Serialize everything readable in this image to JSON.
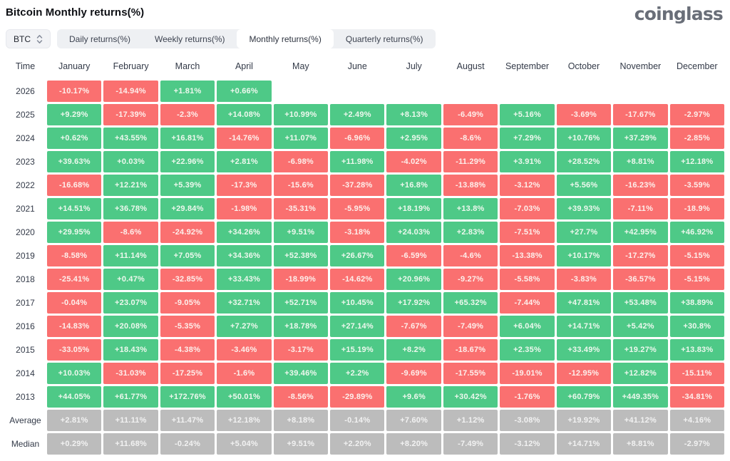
{
  "header": {
    "title": "Bitcoin Monthly returns(%)",
    "logo": "coinglass"
  },
  "controls": {
    "symbol": "BTC",
    "tabs": [
      {
        "label": "Daily returns(%)",
        "active": false
      },
      {
        "label": "Weekly returns(%)",
        "active": false
      },
      {
        "label": "Monthly returns(%)",
        "active": true
      },
      {
        "label": "Quarterly returns(%)",
        "active": false
      }
    ]
  },
  "colors": {
    "positive": "#4ec987",
    "negative": "#fa7070",
    "neutral": "#bcbcbc"
  },
  "chart_data": {
    "type": "heatmap",
    "title": "Bitcoin Monthly returns(%)",
    "columns": [
      "Time",
      "January",
      "February",
      "March",
      "April",
      "May",
      "June",
      "July",
      "August",
      "September",
      "October",
      "November",
      "December"
    ],
    "rows": [
      {
        "label": "2026",
        "neutral": false,
        "values": [
          "-10.17%",
          "-14.94%",
          "+1.81%",
          "+0.66%",
          "",
          "",
          "",
          "",
          "",
          "",
          "",
          ""
        ]
      },
      {
        "label": "2025",
        "neutral": false,
        "values": [
          "+9.29%",
          "-17.39%",
          "-2.3%",
          "+14.08%",
          "+10.99%",
          "+2.49%",
          "+8.13%",
          "-6.49%",
          "+5.16%",
          "-3.69%",
          "-17.67%",
          "-2.97%"
        ]
      },
      {
        "label": "2024",
        "neutral": false,
        "values": [
          "+0.62%",
          "+43.55%",
          "+16.81%",
          "-14.76%",
          "+11.07%",
          "-6.96%",
          "+2.95%",
          "-8.6%",
          "+7.29%",
          "+10.76%",
          "+37.29%",
          "-2.85%"
        ]
      },
      {
        "label": "2023",
        "neutral": false,
        "values": [
          "+39.63%",
          "+0.03%",
          "+22.96%",
          "+2.81%",
          "-6.98%",
          "+11.98%",
          "-4.02%",
          "-11.29%",
          "+3.91%",
          "+28.52%",
          "+8.81%",
          "+12.18%"
        ]
      },
      {
        "label": "2022",
        "neutral": false,
        "values": [
          "-16.68%",
          "+12.21%",
          "+5.39%",
          "-17.3%",
          "-15.6%",
          "-37.28%",
          "+16.8%",
          "-13.88%",
          "-3.12%",
          "+5.56%",
          "-16.23%",
          "-3.59%"
        ]
      },
      {
        "label": "2021",
        "neutral": false,
        "values": [
          "+14.51%",
          "+36.78%",
          "+29.84%",
          "-1.98%",
          "-35.31%",
          "-5.95%",
          "+18.19%",
          "+13.8%",
          "-7.03%",
          "+39.93%",
          "-7.11%",
          "-18.9%"
        ]
      },
      {
        "label": "2020",
        "neutral": false,
        "values": [
          "+29.95%",
          "-8.6%",
          "-24.92%",
          "+34.26%",
          "+9.51%",
          "-3.18%",
          "+24.03%",
          "+2.83%",
          "-7.51%",
          "+27.7%",
          "+42.95%",
          "+46.92%"
        ]
      },
      {
        "label": "2019",
        "neutral": false,
        "values": [
          "-8.58%",
          "+11.14%",
          "+7.05%",
          "+34.36%",
          "+52.38%",
          "+26.67%",
          "-6.59%",
          "-4.6%",
          "-13.38%",
          "+10.17%",
          "-17.27%",
          "-5.15%"
        ]
      },
      {
        "label": "2018",
        "neutral": false,
        "values": [
          "-25.41%",
          "+0.47%",
          "-32.85%",
          "+33.43%",
          "-18.99%",
          "-14.62%",
          "+20.96%",
          "-9.27%",
          "-5.58%",
          "-3.83%",
          "-36.57%",
          "-5.15%"
        ]
      },
      {
        "label": "2017",
        "neutral": false,
        "values": [
          "-0.04%",
          "+23.07%",
          "-9.05%",
          "+32.71%",
          "+52.71%",
          "+10.45%",
          "+17.92%",
          "+65.32%",
          "-7.44%",
          "+47.81%",
          "+53.48%",
          "+38.89%"
        ]
      },
      {
        "label": "2016",
        "neutral": false,
        "values": [
          "-14.83%",
          "+20.08%",
          "-5.35%",
          "+7.27%",
          "+18.78%",
          "+27.14%",
          "-7.67%",
          "-7.49%",
          "+6.04%",
          "+14.71%",
          "+5.42%",
          "+30.8%"
        ]
      },
      {
        "label": "2015",
        "neutral": false,
        "values": [
          "-33.05%",
          "+18.43%",
          "-4.38%",
          "-3.46%",
          "-3.17%",
          "+15.19%",
          "+8.2%",
          "-18.67%",
          "+2.35%",
          "+33.49%",
          "+19.27%",
          "+13.83%"
        ]
      },
      {
        "label": "2014",
        "neutral": false,
        "values": [
          "+10.03%",
          "-31.03%",
          "-17.25%",
          "-1.6%",
          "+39.46%",
          "+2.2%",
          "-9.69%",
          "-17.55%",
          "-19.01%",
          "-12.95%",
          "+12.82%",
          "-15.11%"
        ]
      },
      {
        "label": "2013",
        "neutral": false,
        "values": [
          "+44.05%",
          "+61.77%",
          "+172.76%",
          "+50.01%",
          "-8.56%",
          "-29.89%",
          "+9.6%",
          "+30.42%",
          "-1.76%",
          "+60.79%",
          "+449.35%",
          "-34.81%"
        ]
      },
      {
        "label": "Average",
        "neutral": true,
        "values": [
          "+2.81%",
          "+11.11%",
          "+11.47%",
          "+12.18%",
          "+8.18%",
          "-0.14%",
          "+7.60%",
          "+1.12%",
          "-3.08%",
          "+19.92%",
          "+41.12%",
          "+4.16%"
        ]
      },
      {
        "label": "Median",
        "neutral": true,
        "values": [
          "+0.29%",
          "+11.68%",
          "-0.24%",
          "+5.04%",
          "+9.51%",
          "+2.20%",
          "+8.20%",
          "-7.49%",
          "-3.12%",
          "+14.71%",
          "+8.81%",
          "-2.97%"
        ]
      }
    ]
  }
}
